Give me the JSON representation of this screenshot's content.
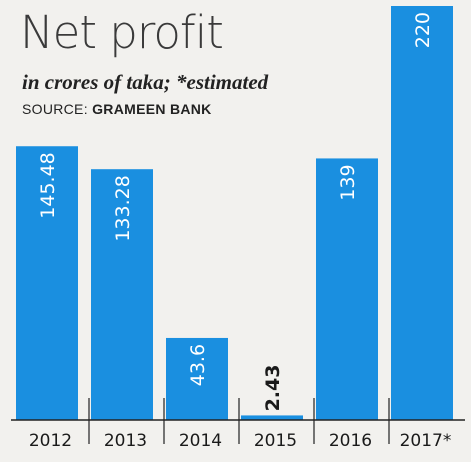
{
  "chart_data": {
    "type": "bar",
    "title": "Net profit",
    "subtitle": "in crores of taka; *estimated",
    "source_label": "SOURCE:",
    "source_name": "GRAMEEN BANK",
    "categories": [
      "2012",
      "2013",
      "2014",
      "2015",
      "2016",
      "2017*"
    ],
    "values": [
      145.48,
      133.28,
      43.6,
      2.43,
      139,
      220
    ],
    "value_labels": [
      "145.48",
      "133.28",
      "43.6",
      "2.43",
      "139",
      "220"
    ],
    "ylim": [
      0,
      220
    ],
    "grid": false,
    "colors": {
      "bar": "#1a8fe0",
      "background": "#f2f1ee",
      "baseline": "#222222"
    }
  }
}
